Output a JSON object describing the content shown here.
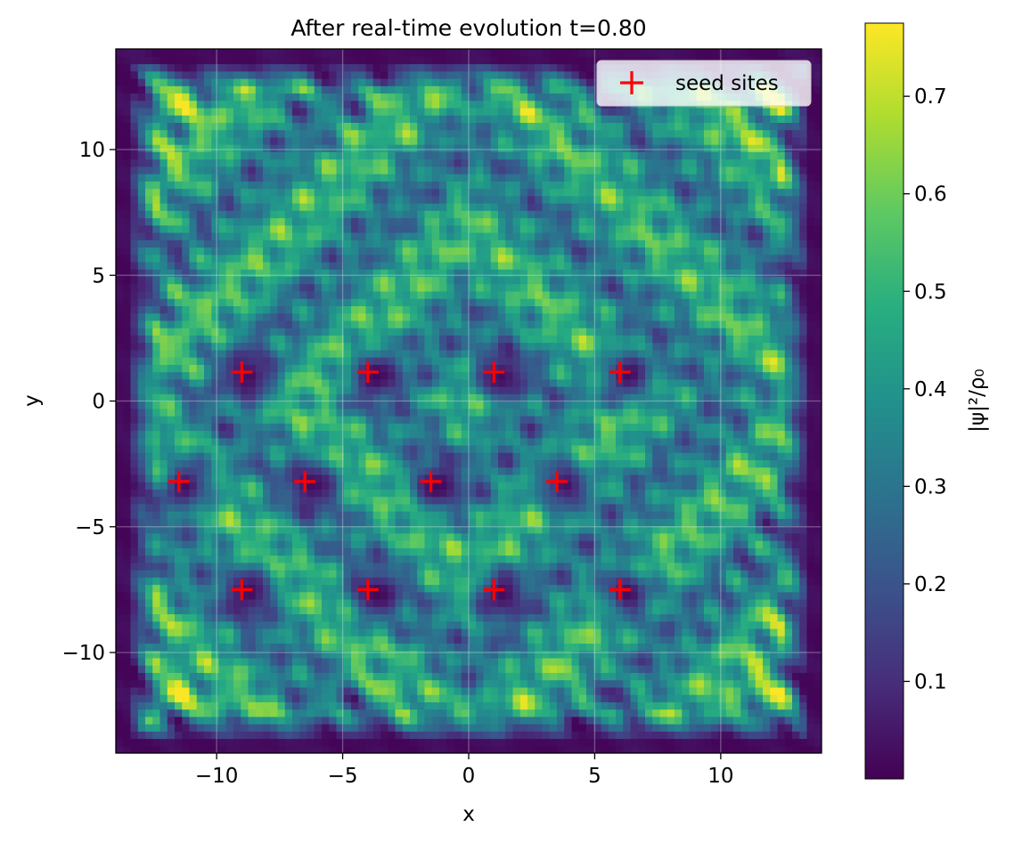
{
  "chart_data": {
    "type": "heatmap",
    "title": "After real-time evolution t=0.80",
    "xlabel": "x",
    "ylabel": "y",
    "xlim": [
      -14,
      14
    ],
    "ylim": [
      -14,
      14
    ],
    "x_ticks": [
      -10,
      -5,
      0,
      5,
      10
    ],
    "x_tick_labels": [
      "−10",
      "−5",
      "0",
      "5",
      "10"
    ],
    "y_ticks": [
      -10,
      -5,
      0,
      5,
      10
    ],
    "y_tick_labels": [
      "−10",
      "−5",
      "0",
      "5",
      "10"
    ],
    "grid": true,
    "colormap": "viridis",
    "colorbar": {
      "label": "|ψ|²/ρ₀",
      "range": [
        0.0,
        0.775
      ],
      "ticks": [
        0.1,
        0.2,
        0.3,
        0.4,
        0.5,
        0.6,
        0.7
      ],
      "tick_labels": [
        "0.1",
        "0.2",
        "0.3",
        "0.4",
        "0.5",
        "0.6",
        "0.7"
      ]
    },
    "legend": {
      "placement": "top-right",
      "entries": [
        {
          "label": "seed sites",
          "marker": "+",
          "color": "#ff0000"
        }
      ]
    },
    "series": [
      {
        "name": "seed sites",
        "type": "scatter",
        "marker": "+",
        "color": "#ff0000",
        "points": [
          [
            -9.0,
            1.15
          ],
          [
            -4.0,
            1.15
          ],
          [
            1.0,
            1.15
          ],
          [
            6.0,
            1.15
          ],
          [
            -11.5,
            -3.2
          ],
          [
            -6.5,
            -3.2
          ],
          [
            -1.5,
            -3.2
          ],
          [
            3.5,
            -3.2
          ],
          [
            -9.0,
            -7.5
          ],
          [
            -4.0,
            -7.5
          ],
          [
            1.0,
            -7.5
          ],
          [
            6.0,
            -7.5
          ]
        ]
      }
    ]
  }
}
